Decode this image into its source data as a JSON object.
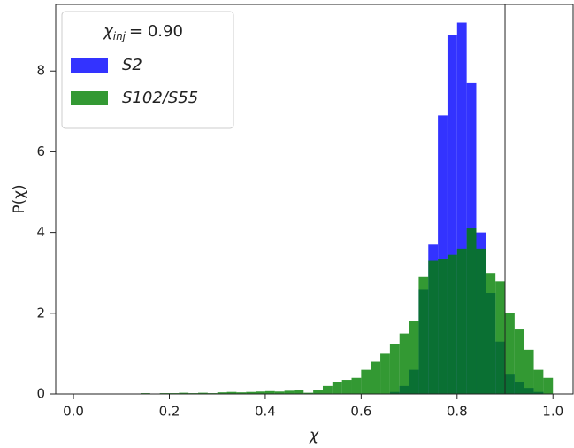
{
  "chart_data": {
    "type": "histogram",
    "xlabel": "χ",
    "ylabel": "P(χ)",
    "xlim": [
      -0.037,
      1.042
    ],
    "ylim": [
      0,
      9.65
    ],
    "xticks": [
      {
        "value": 0,
        "label": "0.0"
      },
      {
        "value": 0.2,
        "label": "0.2"
      },
      {
        "value": 0.4,
        "label": "0.4"
      },
      {
        "value": 0.6,
        "label": "0.6"
      },
      {
        "value": 0.8,
        "label": "0.8"
      },
      {
        "value": 1,
        "label": "1.0"
      }
    ],
    "yticks": [
      0,
      2,
      4,
      6,
      8
    ],
    "vline": 0.9,
    "legend_title": {
      "symbol": "χ",
      "subscript": "inj",
      "text": "= 0.90"
    },
    "legend": "upper left",
    "alpha": 0.8,
    "series": [
      {
        "name": "S2",
        "color": "#3333ff",
        "bins": [
          0.66,
          0.68,
          0.7,
          0.72,
          0.74,
          0.76,
          0.78,
          0.8,
          0.82,
          0.84,
          0.86,
          0.88,
          0.9,
          0.92,
          0.94,
          0.96,
          0.98
        ],
        "values": [
          0.05,
          0.2,
          0.6,
          2.6,
          3.7,
          6.9,
          8.9,
          9.2,
          7.7,
          4.0,
          2.5,
          1.3,
          0.5,
          0.3,
          0.15,
          0.05
        ]
      },
      {
        "name": "S102/S55",
        "color": "#008000",
        "bins": [
          0.1,
          0.12,
          0.14,
          0.16,
          0.18,
          0.2,
          0.22,
          0.24,
          0.26,
          0.28,
          0.3,
          0.32,
          0.34,
          0.36,
          0.38,
          0.4,
          0.42,
          0.44,
          0.46,
          0.48,
          0.5,
          0.52,
          0.54,
          0.56,
          0.58,
          0.6,
          0.62,
          0.64,
          0.66,
          0.68,
          0.7,
          0.72,
          0.74,
          0.76,
          0.78,
          0.8,
          0.82,
          0.84,
          0.86,
          0.88,
          0.9,
          0.92,
          0.94,
          0.96,
          0.98,
          1.0
        ],
        "values": [
          0.01,
          0.01,
          0.02,
          0.01,
          0.02,
          0.02,
          0.03,
          0.02,
          0.03,
          0.02,
          0.04,
          0.05,
          0.04,
          0.05,
          0.06,
          0.07,
          0.06,
          0.08,
          0.1,
          0.03,
          0.1,
          0.2,
          0.3,
          0.35,
          0.4,
          0.6,
          0.8,
          1.0,
          1.25,
          1.5,
          1.8,
          2.9,
          3.3,
          3.35,
          3.45,
          3.6,
          4.1,
          3.6,
          3.0,
          2.8,
          2.0,
          1.6,
          1.1,
          0.6,
          0.4
        ]
      }
    ]
  }
}
